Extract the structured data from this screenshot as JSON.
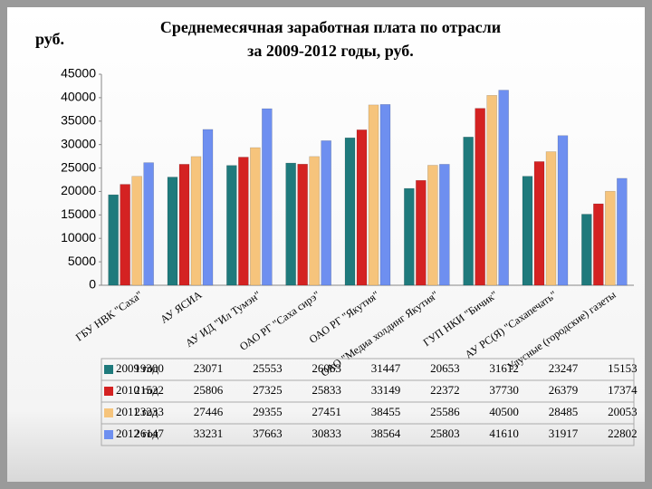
{
  "chart_data": {
    "type": "bar",
    "title": "Среднемесячная заработная плата по отрасли",
    "subtitle": "за 2009-2012 годы, руб.",
    "y_label": "руб.",
    "categories": [
      "ГБУ НВК \"Саха\"",
      "АУ ЯСИА",
      "АУ ИД \"Ил Тумэн\"",
      "ОАО РГ \"Саха сирэ\"",
      "ОАО РГ \"Якутия\"",
      "ОАО \"Медиа холдинг Якутия\"",
      "ГУП НКИ \"Бичик\"",
      "АУ РС(Я) \"Сахапечать\"",
      "Улусные (городские) газеты"
    ],
    "series": [
      {
        "name": "2009 год",
        "color": "#1f7a7c",
        "values": [
          19300,
          23071,
          25553,
          26063,
          31447,
          20653,
          31612,
          23247,
          15153
        ]
      },
      {
        "name": "2010 год",
        "color": "#d42222",
        "values": [
          21522,
          25806,
          27325,
          25833,
          33149,
          22372,
          37730,
          26379,
          17374
        ]
      },
      {
        "name": "2011 год",
        "color": "#f6c47c",
        "values": [
          23233,
          27446,
          29355,
          27451,
          38455,
          25586,
          40500,
          28485,
          20053
        ]
      },
      {
        "name": "2012 год",
        "color": "#6e8ff0",
        "values": [
          26147,
          33231,
          37663,
          30833,
          38564,
          25803,
          41610,
          31917,
          22802
        ]
      }
    ],
    "ylim": [
      0,
      45000
    ],
    "yticks": [
      0,
      5000,
      10000,
      15000,
      20000,
      25000,
      30000,
      35000,
      40000,
      45000
    ]
  }
}
